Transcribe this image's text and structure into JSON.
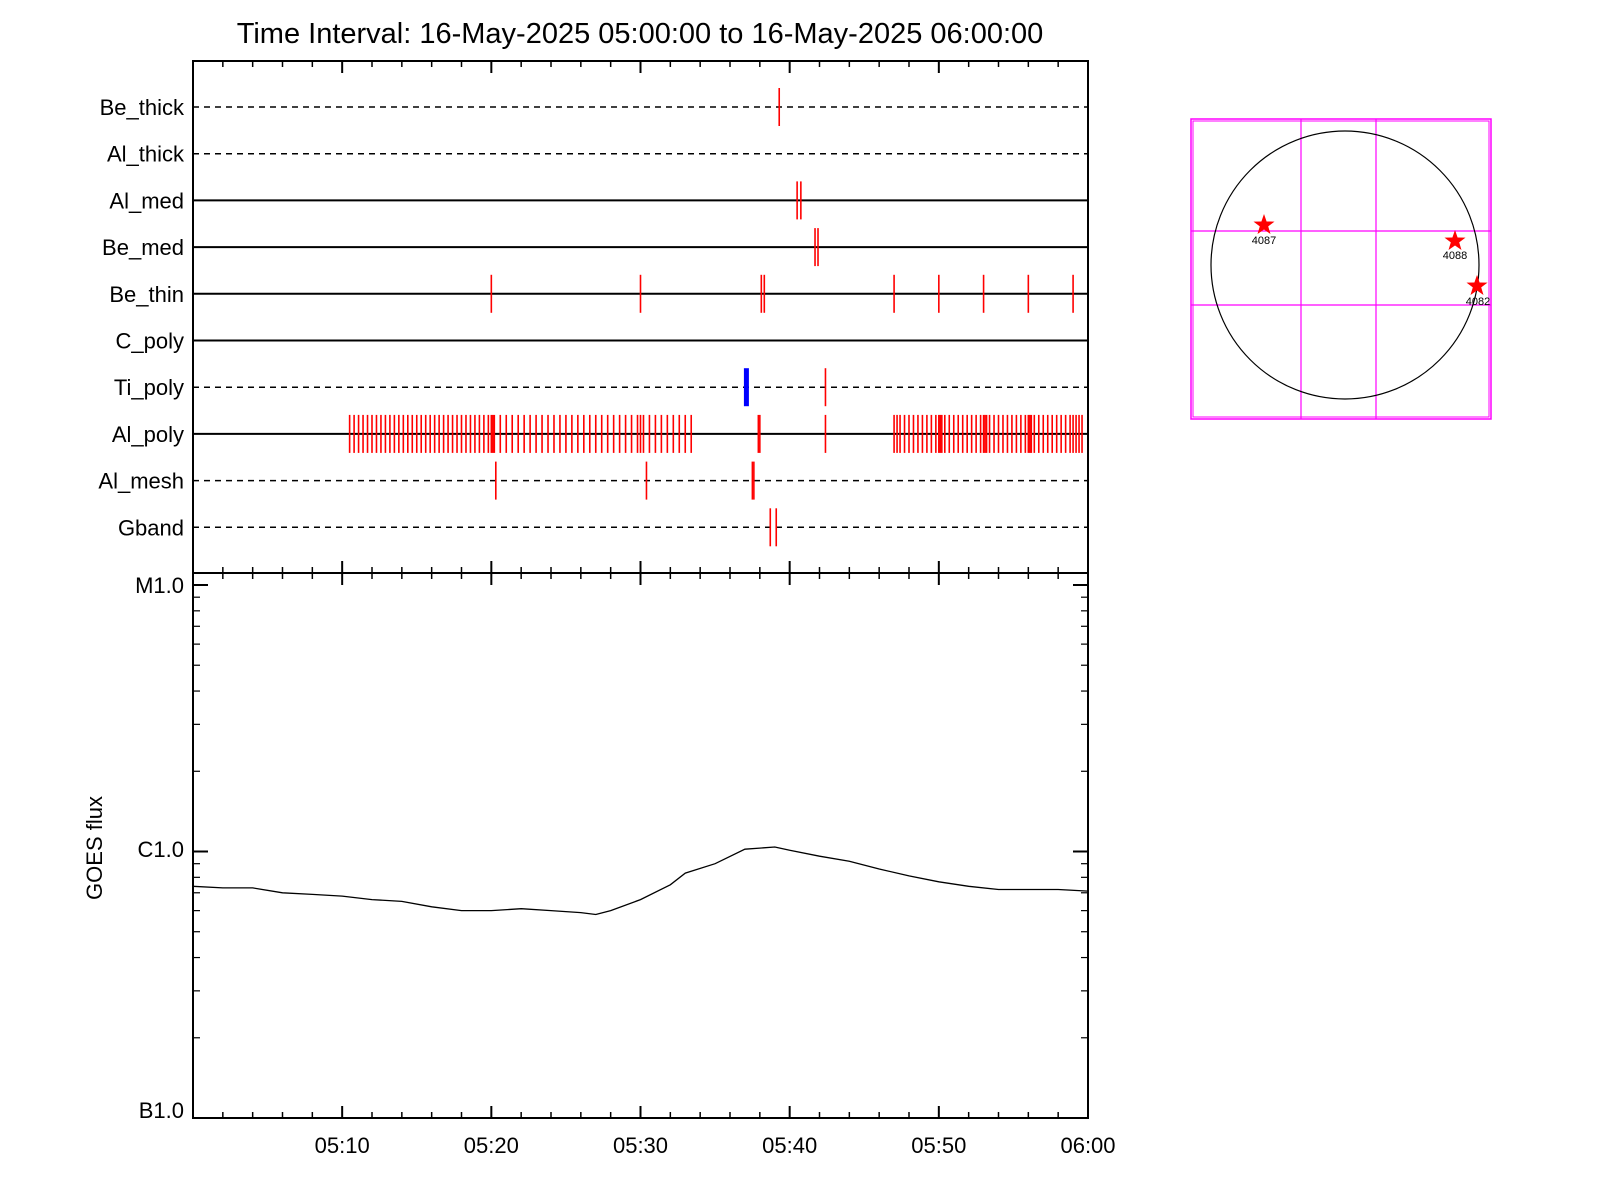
{
  "title": "Time Interval: 16-May-2025 05:00:00 to 16-May-2025 06:00:00",
  "colors": {
    "frame": "#000000",
    "event": "#ff0000",
    "highlight": "#0000ff",
    "sun_grid": "#ff00ff",
    "goes_line": "#000000"
  },
  "chart_data": [
    {
      "type": "scatter",
      "description_kind": "event-timeline",
      "time_range": [
        "05:00",
        "06:00"
      ],
      "time_tick_labels": [
        "05:10",
        "05:20",
        "05:30",
        "05:40",
        "05:50",
        "06:00"
      ],
      "tracks": [
        {
          "name": "Be_thick",
          "line": "dashed",
          "events": [
            39.3
          ]
        },
        {
          "name": "Al_thick",
          "line": "dashed",
          "events": []
        },
        {
          "name": "Al_med",
          "line": "solid",
          "events": [
            40.5,
            40.75
          ]
        },
        {
          "name": "Be_med",
          "line": "solid",
          "events": [
            41.7,
            41.9
          ]
        },
        {
          "name": "Be_thin",
          "line": "solid",
          "events": [
            20.0,
            30.0,
            38.1,
            38.3,
            47.0,
            50.0,
            53.0,
            56.0,
            59.0
          ]
        },
        {
          "name": "C_poly",
          "line": "solid",
          "events": []
        },
        {
          "name": "Ti_poly",
          "line": "dashed",
          "events": [
            42.4
          ],
          "highlight_events": [
            37.1
          ]
        },
        {
          "name": "Al_poly",
          "line": "solid",
          "events": [
            10.5,
            10.8,
            11.1,
            11.4,
            11.7,
            12.0,
            12.3,
            12.6,
            12.9,
            13.2,
            13.5,
            13.8,
            14.1,
            14.4,
            14.7,
            15.0,
            15.3,
            15.6,
            15.9,
            16.2,
            16.5,
            16.8,
            17.1,
            17.4,
            17.7,
            18.0,
            18.3,
            18.6,
            18.9,
            19.2,
            19.5,
            19.8,
            20.0,
            20.1,
            20.2,
            20.6,
            21.0,
            21.4,
            21.8,
            22.2,
            22.6,
            23.0,
            23.4,
            23.8,
            24.2,
            24.6,
            25.0,
            25.4,
            25.8,
            26.2,
            26.6,
            27.0,
            27.4,
            27.8,
            28.2,
            28.6,
            29.0,
            29.4,
            29.8,
            30.0,
            30.2,
            30.6,
            31.0,
            31.4,
            31.8,
            32.2,
            32.6,
            33.0,
            33.4,
            37.9,
            38.0,
            42.4,
            47.0,
            47.2,
            47.4,
            47.7,
            48.0,
            48.3,
            48.6,
            48.9,
            49.2,
            49.5,
            49.8,
            50.0,
            50.1,
            50.2,
            50.4,
            50.7,
            51.0,
            51.3,
            51.6,
            51.9,
            52.2,
            52.5,
            52.8,
            53.0,
            53.1,
            53.2,
            53.4,
            53.7,
            54.0,
            54.3,
            54.6,
            54.9,
            55.2,
            55.5,
            55.8,
            56.0,
            56.1,
            56.2,
            56.4,
            56.7,
            57.0,
            57.3,
            57.6,
            57.9,
            58.2,
            58.5,
            58.8,
            59.0,
            59.2,
            59.4,
            59.6
          ]
        },
        {
          "name": "Al_mesh",
          "line": "dashed",
          "events": [
            20.3,
            30.4,
            37.5,
            37.6
          ]
        },
        {
          "name": "Gband",
          "line": "dashed",
          "events": [
            38.7,
            39.1
          ]
        }
      ]
    },
    {
      "type": "line",
      "ylabel": "GOES flux",
      "y_scale": "log",
      "y_tick_labels": [
        "M1.0",
        "C1.0",
        "B1.0"
      ],
      "ylim": [
        1e-07,
        1e-05
      ],
      "x_tick_labels": [
        "05:10",
        "05:20",
        "05:30",
        "05:40",
        "05:50",
        "06:00"
      ],
      "xlim": [
        "05:00",
        "06:00"
      ],
      "series": [
        {
          "x": [
            "05:00",
            "05:02",
            "05:04",
            "05:06",
            "05:08",
            "05:10",
            "05:12",
            "05:14",
            "05:16",
            "05:18",
            "05:20",
            "05:22",
            "05:24",
            "05:26",
            "05:27",
            "05:28",
            "05:30",
            "05:32",
            "05:33",
            "05:35",
            "05:37",
            "05:38",
            "05:39",
            "05:40",
            "05:42",
            "05:44",
            "05:46",
            "05:48",
            "05:50",
            "05:52",
            "05:54",
            "05:56",
            "05:58",
            "06:00"
          ],
          "values": [
            7.4e-07,
            7.3e-07,
            7.3e-07,
            7e-07,
            6.9e-07,
            6.8e-07,
            6.6e-07,
            6.5e-07,
            6.2e-07,
            6e-07,
            6e-07,
            6.1e-07,
            6e-07,
            5.9e-07,
            5.8e-07,
            6e-07,
            6.6e-07,
            7.5e-07,
            8.3e-07,
            9e-07,
            1.02e-06,
            1.03e-06,
            1.04e-06,
            1.01e-06,
            9.6e-07,
            9.2e-07,
            8.6e-07,
            8.1e-07,
            7.7e-07,
            7.4e-07,
            7.2e-07,
            7.2e-07,
            7.2e-07,
            7.1e-07
          ]
        }
      ]
    },
    {
      "type": "scatter",
      "description_kind": "solar-disk-map",
      "regions": [
        {
          "label": "4087",
          "marker": "star",
          "color": "#ff0000"
        },
        {
          "label": "4088",
          "marker": "star",
          "color": "#ff0000"
        },
        {
          "label": "4082",
          "marker": "star",
          "color": "#ff0000"
        }
      ]
    }
  ]
}
